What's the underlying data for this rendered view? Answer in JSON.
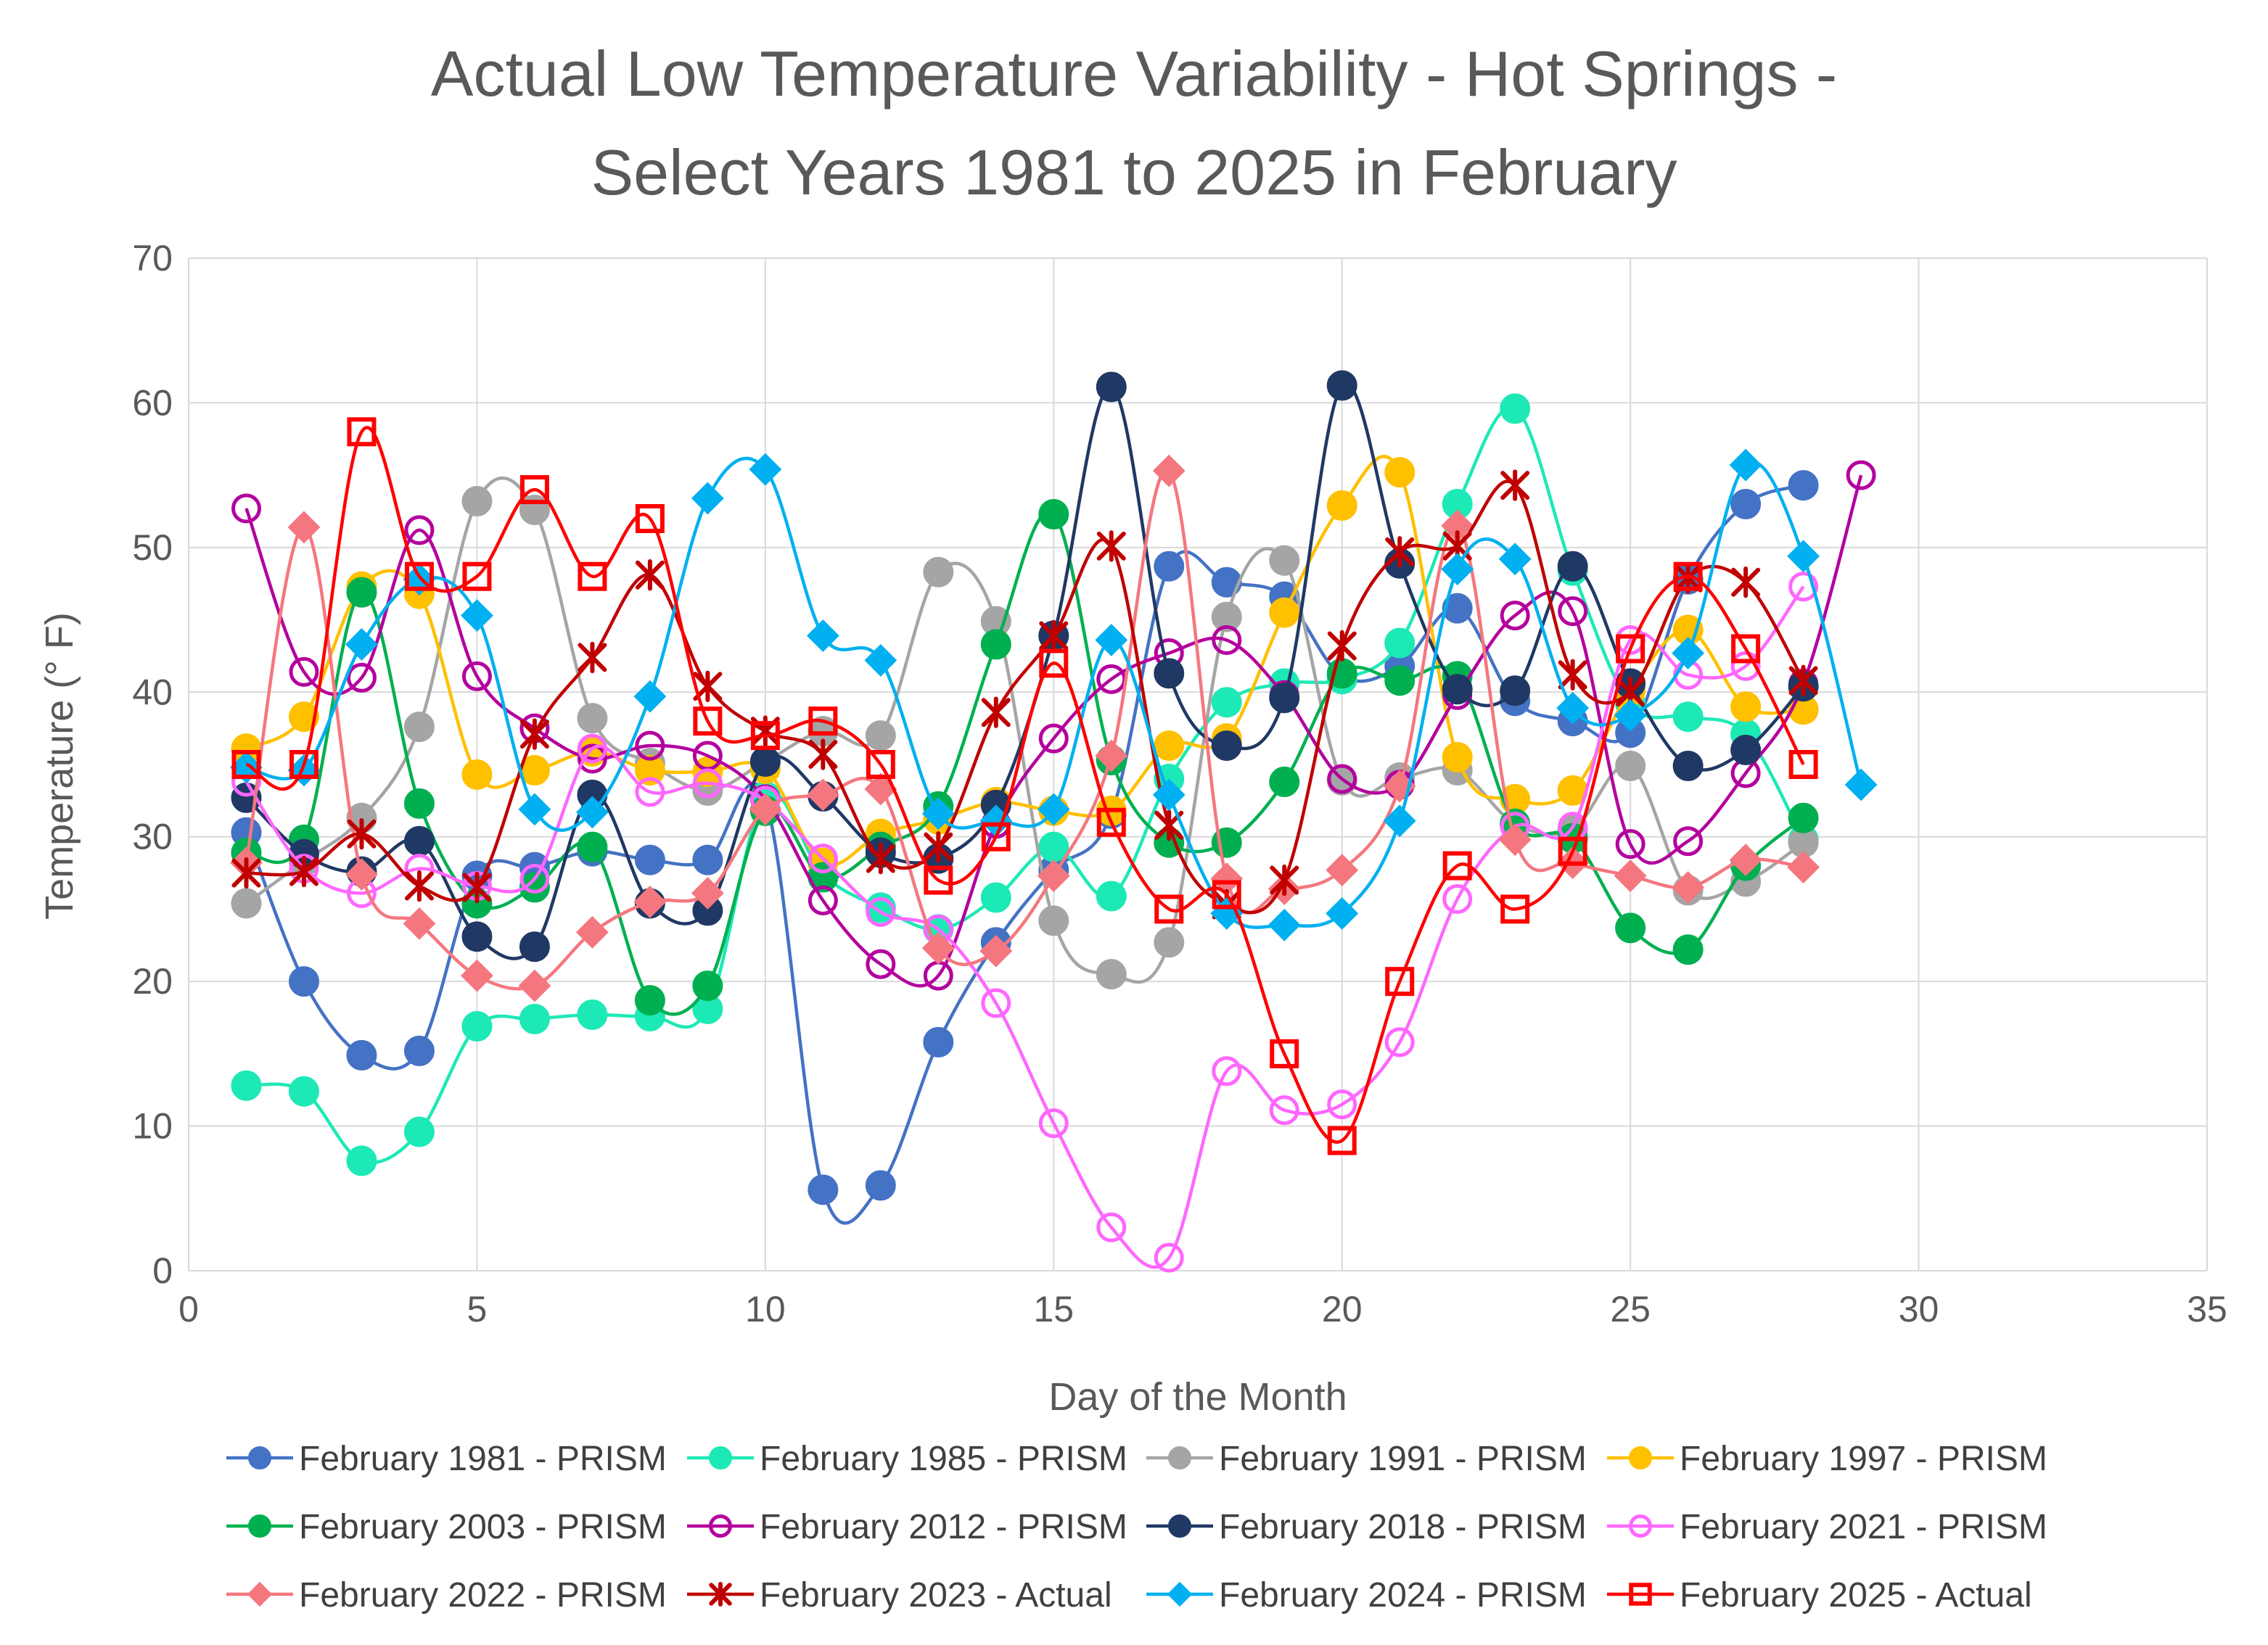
{
  "chart_data": {
    "type": "line",
    "title_line1": "Actual Low Temperature Variability - Hot Springs -",
    "title_line2": "Select Years 1981 to 2025 in February",
    "xlabel": "Day of the Month",
    "ylabel": "Temperature (° F)",
    "xlim": [
      0,
      35
    ],
    "ylim": [
      0,
      70
    ],
    "xticks": [
      0,
      5,
      10,
      15,
      20,
      25,
      30,
      35
    ],
    "yticks": [
      0,
      10,
      20,
      30,
      40,
      50,
      60,
      70
    ],
    "grid": true,
    "legend_position": "bottom",
    "series": [
      {
        "name": "February 1981 - PRISM",
        "color": "#4472C4",
        "marker": "circle",
        "values": [
          30.3,
          20,
          14.9,
          15.2,
          27.3,
          27.9,
          29,
          28.4,
          28.4,
          32.6,
          5.6,
          5.9,
          15.8,
          22.7,
          27.7,
          31.6,
          48.7,
          47.6,
          46.6,
          41.1,
          41.8,
          45.8,
          39.4,
          38,
          37.2,
          47.8,
          53,
          54.3
        ]
      },
      {
        "name": "February 1985 - PRISM",
        "color": "#1DE9B6",
        "marker": "circle",
        "values": [
          12.8,
          12.4,
          7.6,
          9.6,
          16.9,
          17.4,
          17.7,
          17.6,
          18.1,
          32.8,
          27.4,
          25.1,
          23.6,
          25.8,
          29.3,
          25.9,
          34,
          39.3,
          40.6,
          40.9,
          43.4,
          53,
          59.6,
          48.4,
          39.2,
          38.3,
          37.1,
          29.8
        ]
      },
      {
        "name": "February 1991 - PRISM",
        "color": "#A5A5A5",
        "marker": "circle",
        "values": [
          25.4,
          28.3,
          31.3,
          37.6,
          53.2,
          52.6,
          38.2,
          35.1,
          33.2,
          35.2,
          37.3,
          37,
          48.3,
          44.9,
          24.2,
          20.5,
          22.7,
          45.2,
          49.1,
          33.9,
          34.1,
          34.6,
          30.9,
          30.5,
          34.9,
          26.3,
          26.9,
          29.6
        ]
      },
      {
        "name": "February 1997 - PRISM",
        "color": "#FFC000",
        "marker": "circle",
        "values": [
          36.1,
          38.3,
          47.3,
          46.8,
          34.3,
          34.6,
          35.9,
          34.6,
          34.5,
          34.7,
          28.2,
          30.2,
          31.2,
          32.4,
          31.8,
          31.8,
          36.3,
          36.8,
          45.5,
          52.9,
          55.2,
          35.5,
          32.6,
          33.2,
          40.1,
          44.3,
          39,
          38.8
        ]
      },
      {
        "name": "February 2003 - PRISM",
        "color": "#00B050",
        "marker": "circle",
        "values": [
          28.9,
          29.8,
          46.9,
          32.3,
          25.4,
          26.5,
          29.3,
          18.7,
          19.7,
          31.8,
          27.2,
          29.3,
          32.1,
          43.3,
          52.3,
          35.3,
          29.6,
          29.6,
          33.8,
          41.3,
          40.8,
          41.1,
          30.9,
          29.9,
          23.7,
          22.2,
          28,
          31.3
        ]
      },
      {
        "name": "February 2012 - PRISM",
        "color": "#B4009E",
        "marker": "open-circle",
        "values": [
          52.7,
          41.4,
          41,
          51.2,
          41.1,
          37.5,
          35.4,
          36.3,
          35.6,
          32.6,
          25.6,
          21.2,
          20.4,
          30.9,
          36.8,
          40.9,
          42.7,
          43.6,
          39.8,
          34,
          33.6,
          39.8,
          45.3,
          45.6,
          29.5,
          29.7,
          34.4,
          40.6,
          55
        ]
      },
      {
        "name": "February 2018 - PRISM",
        "color": "#203864",
        "marker": "circle",
        "values": [
          32.7,
          28.8,
          27.6,
          29.7,
          23.1,
          22.4,
          32.9,
          25.4,
          24.9,
          35.2,
          32.8,
          28.9,
          28.5,
          32.2,
          43.9,
          61.1,
          41.3,
          36.3,
          39.6,
          61.2,
          48.9,
          40.2,
          40.1,
          48.7,
          40.6,
          34.9,
          36,
          40.4
        ]
      },
      {
        "name": "February 2021 - PRISM",
        "color": "#FF66FF",
        "marker": "open-circle",
        "values": [
          33.8,
          27.8,
          26.1,
          27.8,
          26.6,
          27.1,
          36.1,
          33.1,
          33.7,
          32.5,
          28.5,
          24.8,
          23.6,
          18.5,
          10.2,
          3,
          0.9,
          13.8,
          11.1,
          11.5,
          15.8,
          25.7,
          30.7,
          30.7,
          43.6,
          41.2,
          41.8,
          47.3
        ]
      },
      {
        "name": "February 2022 - PRISM",
        "color": "#F4777F",
        "marker": "diamond",
        "values": [
          28.2,
          51.4,
          27.4,
          24,
          20.4,
          19.7,
          23.4,
          25.5,
          26.1,
          31.9,
          32.9,
          33.3,
          22.3,
          22.1,
          27.3,
          35.6,
          55.3,
          27.1,
          26.4,
          27.7,
          33.5,
          51.5,
          29.8,
          28.2,
          27.3,
          26.5,
          28.4,
          27.9
        ]
      },
      {
        "name": "February 2023 - Actual",
        "color": "#C00000",
        "marker": "asterisk",
        "values": [
          27.5,
          27.6,
          30.2,
          26.6,
          26.5,
          37.1,
          42.4,
          48.1,
          40.4,
          37.3,
          35.7,
          28.5,
          29.3,
          38.6,
          43.9,
          50.1,
          30.8,
          25.3,
          27,
          43.2,
          49.7,
          50.1,
          54.3,
          41.2,
          40,
          47.9,
          47.6,
          40.8
        ]
      },
      {
        "name": "February 2024 - PRISM",
        "color": "#00B0F0",
        "marker": "diamond",
        "values": [
          34.8,
          34.6,
          43.3,
          47.8,
          45.3,
          31.9,
          31.7,
          39.7,
          53.4,
          55.4,
          43.9,
          42.2,
          31.6,
          31.1,
          31.9,
          43.6,
          32.9,
          24.7,
          23.9,
          24.7,
          31.1,
          48.5,
          49.2,
          38.9,
          38.4,
          42.7,
          55.7,
          49.4,
          33.6
        ]
      },
      {
        "name": "February 2025 - Actual",
        "color": "#FF0000",
        "marker": "open-square",
        "values": [
          35,
          35,
          58,
          48,
          48,
          54,
          48,
          52,
          38,
          37,
          38,
          35,
          27,
          30,
          42,
          31,
          25,
          26,
          15,
          9,
          20,
          28,
          25,
          29,
          43,
          48,
          43,
          35
        ]
      }
    ]
  }
}
